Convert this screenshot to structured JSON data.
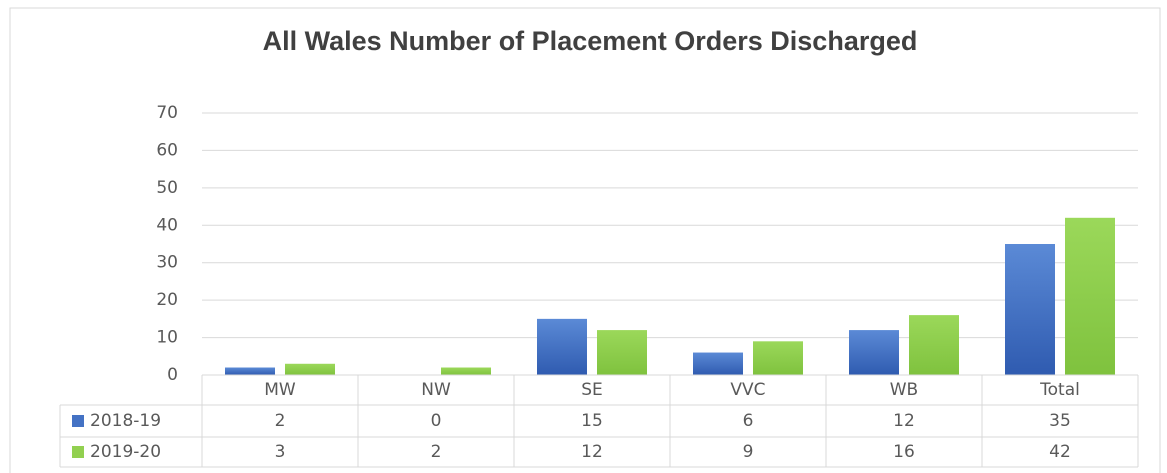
{
  "chart_data": {
    "type": "bar",
    "title": "All Wales Number of Placement Orders Discharged",
    "categories": [
      "MW",
      "NW",
      "SE",
      "VVC",
      "WB",
      "Total"
    ],
    "series": [
      {
        "name": "2018-19",
        "color": "#4472c4",
        "values": [
          2,
          0,
          15,
          6,
          12,
          35
        ]
      },
      {
        "name": "2019-20",
        "color": "#92d050",
        "values": [
          3,
          2,
          12,
          9,
          16,
          42
        ]
      }
    ],
    "ylim": [
      0,
      70
    ],
    "yticks": [
      0,
      10,
      20,
      30,
      40,
      50,
      60,
      70
    ],
    "grid": true,
    "data_table": true
  }
}
